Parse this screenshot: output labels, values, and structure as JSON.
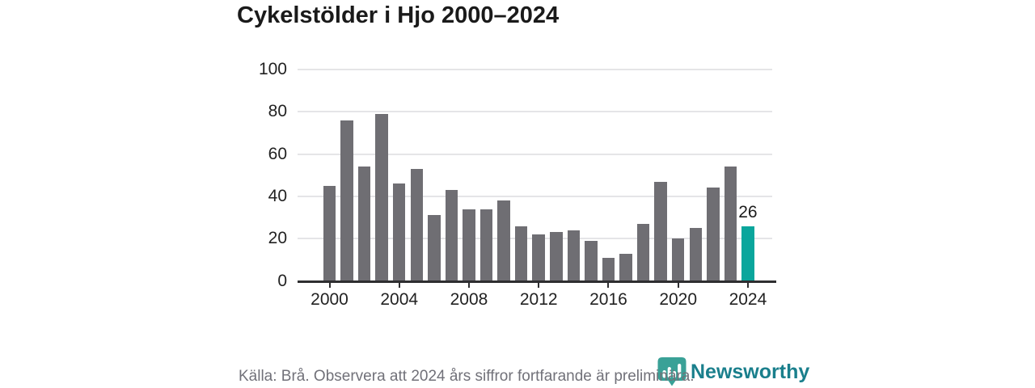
{
  "title": "Cykelstölder i Hjo 2000–2024",
  "footer": {
    "source_text": "Källa: Brå. Observera att 2024 års siffror fortfarande är preliminära.",
    "brand_name": "Newsworthy"
  },
  "colors": {
    "bar": "#6f6e73",
    "highlight_bar": "#0aa69c",
    "axis": "#2e2e30",
    "grid": "#e5e5e7",
    "tick_label": "#222222",
    "annotation": "#1c1c1c",
    "footer_text": "#717179",
    "brand_text": "#1a7f8c",
    "logo_badge": "#3aa197"
  },
  "chart_data": {
    "type": "bar",
    "title": "Cykelstölder i Hjo 2000–2024",
    "xlabel": "",
    "ylabel": "",
    "x": [
      2000,
      2001,
      2002,
      2003,
      2004,
      2005,
      2006,
      2007,
      2008,
      2009,
      2010,
      2011,
      2012,
      2013,
      2014,
      2015,
      2016,
      2017,
      2018,
      2019,
      2020,
      2021,
      2022,
      2023,
      2024
    ],
    "values": [
      45,
      76,
      54,
      79,
      46,
      53,
      31,
      43,
      34,
      34,
      38,
      26,
      22,
      23,
      24,
      19,
      11,
      13,
      27,
      47,
      20,
      25,
      44,
      54,
      26
    ],
    "highlight_index": 24,
    "annotations": [
      {
        "x": 2024,
        "text": "26"
      }
    ],
    "ylim": [
      0,
      100
    ],
    "yticks": [
      0,
      20,
      40,
      60,
      80,
      100
    ],
    "xticks": [
      2000,
      2004,
      2008,
      2012,
      2016,
      2020,
      2024
    ],
    "grid": true,
    "legend": null
  },
  "logo_icon_name": "newsworthy-badge-bar-chart-icon"
}
